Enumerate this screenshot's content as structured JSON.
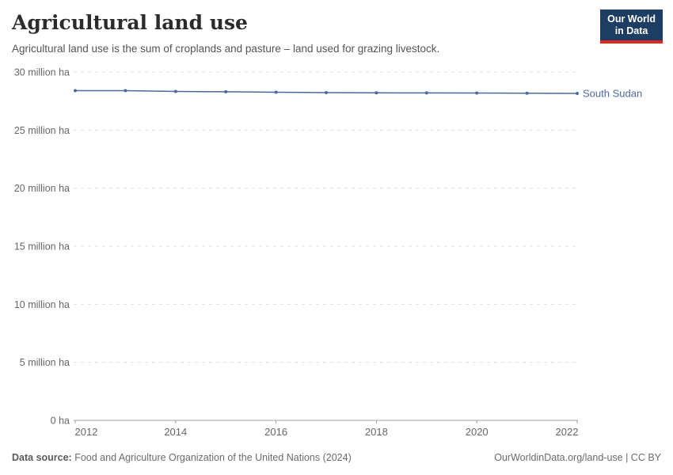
{
  "header": {
    "title": "Agricultural land use",
    "subtitle": "Agricultural land use is the sum of croplands and pasture – land used for grazing livestock."
  },
  "logo": {
    "line1": "Our World",
    "line2": "in Data",
    "bg_color": "#1d3d63",
    "accent_color": "#dc2a20"
  },
  "chart_data": {
    "type": "line",
    "title": "Agricultural land use",
    "unit": "million ha",
    "x": [
      2012,
      2013,
      2014,
      2015,
      2016,
      2017,
      2018,
      2019,
      2020,
      2021,
      2022
    ],
    "series": [
      {
        "name": "South Sudan",
        "color": "#4c6a9c",
        "values": [
          28.4,
          28.4,
          28.33,
          28.3,
          28.26,
          28.23,
          28.21,
          28.2,
          28.19,
          28.18,
          28.16
        ]
      }
    ],
    "xlabel": "",
    "ylabel": "",
    "ylim": [
      0,
      30
    ],
    "xlim": [
      2012,
      2022
    ],
    "yticks": [
      {
        "value": 0,
        "label": "0 ha"
      },
      {
        "value": 5,
        "label": "5 million ha"
      },
      {
        "value": 10,
        "label": "10 million ha"
      },
      {
        "value": 15,
        "label": "15 million ha"
      },
      {
        "value": 20,
        "label": "20 million ha"
      },
      {
        "value": 25,
        "label": "25 million ha"
      },
      {
        "value": 30,
        "label": "30 million ha"
      }
    ],
    "xticks": [
      2012,
      2014,
      2016,
      2018,
      2020,
      2022
    ],
    "grid": "horizontal-dashed",
    "grid_color": "#dddddd",
    "axis_color": "#a0a0a0",
    "legend_position": "end-of-line-label",
    "markers": true
  },
  "footer": {
    "source_label": "Data source:",
    "source_text": "Food and Agriculture Organization of the United Nations (2024)",
    "link_text": "OurWorldinData.org/land-use | CC BY"
  }
}
